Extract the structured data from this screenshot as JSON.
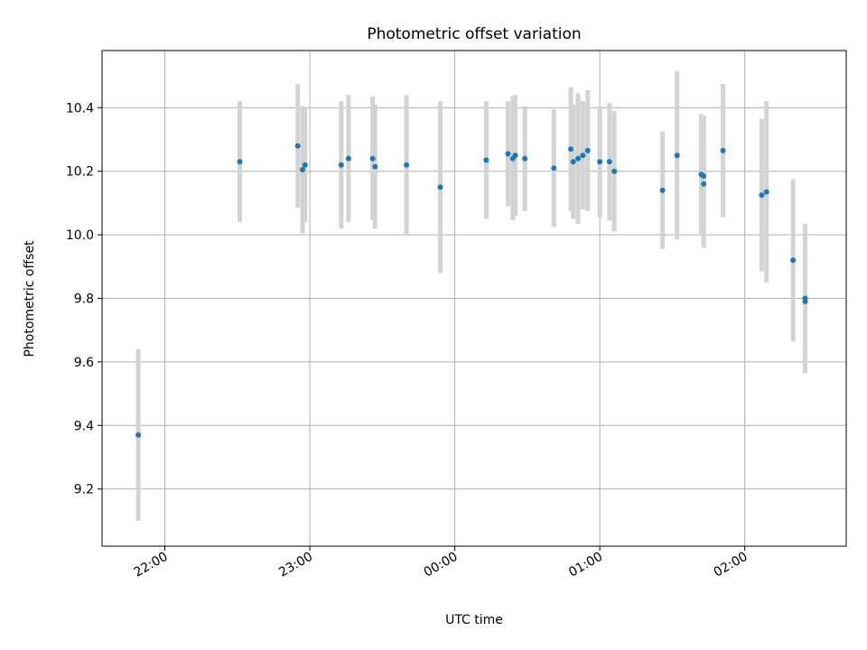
{
  "chart_data": {
    "type": "scatter",
    "title": "Photometric offset variation",
    "xlabel": "UTC time",
    "ylabel": "Photometric offset",
    "x_ticks": [
      "22:00",
      "23:00",
      "00:00",
      "01:00",
      "02:00"
    ],
    "y_ticks": [
      "9.2",
      "9.4",
      "9.6",
      "9.8",
      "10.0",
      "10.2",
      "10.4"
    ],
    "grid": true,
    "xlim": [
      "21:34",
      "02:42"
    ],
    "ylim": [
      9.02,
      10.58
    ],
    "colors": {
      "point": "#1f77b4",
      "errorbar": "#d3d3d3",
      "grid": "#b0b0b0"
    },
    "points": [
      {
        "x": "21:49",
        "y": 9.37,
        "err": 0.27
      },
      {
        "x": "22:31",
        "y": 10.23,
        "err": 0.19
      },
      {
        "x": "22:55",
        "y": 10.28,
        "err": 0.195
      },
      {
        "x": "22:57",
        "y": 10.205,
        "err": 0.2
      },
      {
        "x": "22:58",
        "y": 10.22,
        "err": 0.18
      },
      {
        "x": "23:13",
        "y": 10.22,
        "err": 0.2
      },
      {
        "x": "23:16",
        "y": 10.24,
        "err": 0.2
      },
      {
        "x": "23:26",
        "y": 10.24,
        "err": 0.195
      },
      {
        "x": "23:27",
        "y": 10.215,
        "err": 0.195
      },
      {
        "x": "23:40",
        "y": 10.22,
        "err": 0.22
      },
      {
        "x": "23:54",
        "y": 10.15,
        "err": 0.27
      },
      {
        "x": "00:13",
        "y": 10.235,
        "err": 0.185
      },
      {
        "x": "00:22",
        "y": 10.255,
        "err": 0.165
      },
      {
        "x": "00:24",
        "y": 10.24,
        "err": 0.195
      },
      {
        "x": "00:25",
        "y": 10.25,
        "err": 0.19
      },
      {
        "x": "00:29",
        "y": 10.24,
        "err": 0.165
      },
      {
        "x": "00:41",
        "y": 10.21,
        "err": 0.185
      },
      {
        "x": "00:48",
        "y": 10.27,
        "err": 0.195
      },
      {
        "x": "00:49",
        "y": 10.23,
        "err": 0.18
      },
      {
        "x": "00:51",
        "y": 10.24,
        "err": 0.205
      },
      {
        "x": "00:53",
        "y": 10.25,
        "err": 0.17
      },
      {
        "x": "00:55",
        "y": 10.265,
        "err": 0.19
      },
      {
        "x": "01:00",
        "y": 10.23,
        "err": 0.175
      },
      {
        "x": "01:04",
        "y": 10.23,
        "err": 0.185
      },
      {
        "x": "01:06",
        "y": 10.2,
        "err": 0.19
      },
      {
        "x": "01:26",
        "y": 10.14,
        "err": 0.185
      },
      {
        "x": "01:32",
        "y": 10.25,
        "err": 0.265
      },
      {
        "x": "01:42",
        "y": 10.19,
        "err": 0.19
      },
      {
        "x": "01:43",
        "y": 10.185,
        "err": 0.19
      },
      {
        "x": "01:43",
        "y": 10.16,
        "err": 0.2
      },
      {
        "x": "01:51",
        "y": 10.265,
        "err": 0.21
      },
      {
        "x": "02:07",
        "y": 10.125,
        "err": 0.24
      },
      {
        "x": "02:09",
        "y": 10.135,
        "err": 0.285
      },
      {
        "x": "02:20",
        "y": 9.92,
        "err": 0.255
      },
      {
        "x": "02:25",
        "y": 9.79,
        "err": 0.225
      },
      {
        "x": "02:25",
        "y": 9.8,
        "err": 0.235
      }
    ]
  }
}
